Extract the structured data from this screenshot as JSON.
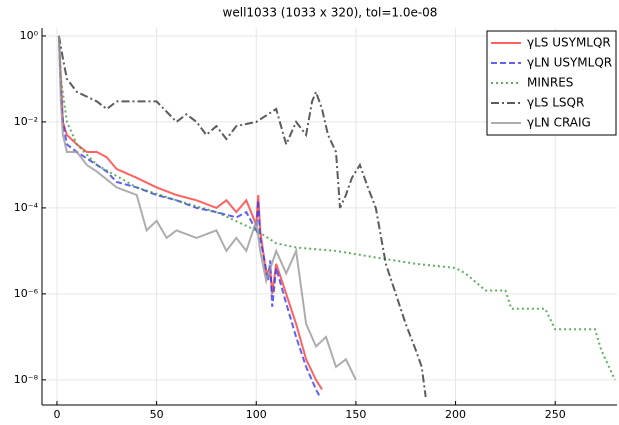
{
  "chart_data": {
    "type": "line",
    "title": "well1033 (1033 x 320), tol=1.0e-08",
    "xlim": [
      -7.5,
      281
    ],
    "xticks": [
      0,
      50,
      100,
      150,
      200,
      250
    ],
    "ylim": [
      2.6e-09,
      1.53
    ],
    "log_y": true,
    "grid": true,
    "legend": "top-right",
    "yticks": [
      {
        "value": 1,
        "label": "10⁰"
      },
      {
        "value": 0.01,
        "label": "10⁻²"
      },
      {
        "value": 0.0001,
        "label": "10⁻⁴"
      },
      {
        "value": 1e-06,
        "label": "10⁻⁶"
      },
      {
        "value": 1e-08,
        "label": "10⁻⁸"
      }
    ],
    "series": [
      {
        "name": "γLS USYMLQR",
        "color": "#ff3b3b",
        "linestyle": "solid",
        "x": [
          1,
          2,
          3,
          5,
          10,
          15,
          20,
          25,
          30,
          40,
          50,
          60,
          70,
          80,
          85,
          90,
          95,
          100,
          101,
          102,
          105,
          107,
          108,
          110,
          115,
          120,
          125,
          130,
          133
        ],
        "values": [
          1,
          0.1,
          0.01,
          0.005,
          0.003,
          0.002,
          0.002,
          0.0015,
          0.0008,
          0.0005,
          0.0003,
          0.0002,
          0.00015,
          0.0001,
          0.00015,
          8e-05,
          0.00015,
          4e-05,
          0.0002,
          3e-05,
          3e-06,
          4e-06,
          1e-06,
          5e-06,
          1e-06,
          2e-07,
          3e-08,
          1e-08,
          6e-09
        ]
      },
      {
        "name": "γLN USYMLQR",
        "color": "#3a3af0",
        "linestyle": "dash",
        "x": [
          1,
          2,
          3,
          5,
          10,
          20,
          25,
          30,
          40,
          50,
          60,
          70,
          80,
          90,
          95,
          100,
          101,
          102,
          106,
          107,
          108,
          110,
          115,
          120,
          125,
          130,
          132
        ],
        "values": [
          1,
          0.05,
          0.01,
          0.003,
          0.002,
          0.001,
          0.0007,
          0.0004,
          0.0003,
          0.0002,
          0.00015,
          0.0001,
          8e-05,
          6e-05,
          8e-05,
          3e-05,
          0.00015,
          2e-05,
          2e-06,
          6e-06,
          5e-07,
          4e-06,
          6e-07,
          1e-07,
          2e-08,
          6e-09,
          4e-09
        ]
      },
      {
        "name": "MINRES",
        "color": "#3a9a3a",
        "linestyle": "dot",
        "x": [
          1,
          2,
          5,
          10,
          20,
          40,
          60,
          80,
          100,
          110,
          120,
          140,
          160,
          180,
          200,
          205,
          215,
          225,
          228,
          245,
          250,
          270,
          273,
          280
        ],
        "values": [
          1,
          0.1,
          0.01,
          0.003,
          0.001,
          0.0003,
          0.00015,
          8e-05,
          3e-05,
          1.5e-05,
          1.2e-05,
          1e-05,
          7e-06,
          5e-06,
          4e-06,
          3e-06,
          1.2e-06,
          1.2e-06,
          4.5e-07,
          4.5e-07,
          1.5e-07,
          1.5e-07,
          5e-08,
          1e-08
        ]
      },
      {
        "name": "γLS LSQR",
        "color": "#333333",
        "linestyle": "dashdot",
        "x": [
          1,
          3,
          5,
          10,
          20,
          25,
          30,
          40,
          50,
          60,
          65,
          70,
          75,
          80,
          85,
          90,
          100,
          110,
          115,
          120,
          125,
          128,
          130,
          133,
          136,
          140,
          142,
          145,
          148,
          152,
          156,
          160,
          165,
          170,
          175,
          180,
          183,
          185
        ],
        "values": [
          1,
          0.3,
          0.1,
          0.05,
          0.03,
          0.02,
          0.03,
          0.03,
          0.03,
          0.01,
          0.015,
          0.01,
          0.005,
          0.008,
          0.004,
          0.008,
          0.01,
          0.02,
          0.003,
          0.01,
          0.005,
          0.03,
          0.05,
          0.02,
          0.005,
          0.002,
          0.0001,
          0.0002,
          0.0005,
          0.001,
          0.0003,
          0.0001,
          5e-06,
          1e-06,
          2e-07,
          5e-08,
          2e-08,
          4e-09
        ]
      },
      {
        "name": "γLN CRAIG",
        "color": "#999999",
        "linestyle": "solid",
        "x": [
          1,
          2,
          3,
          5,
          10,
          15,
          20,
          30,
          40,
          45,
          50,
          55,
          60,
          70,
          80,
          85,
          90,
          95,
          100,
          102,
          105,
          110,
          115,
          120,
          125,
          130,
          135,
          140,
          145,
          150
        ],
        "values": [
          1,
          0.03,
          0.005,
          0.002,
          0.002,
          0.001,
          0.0007,
          0.0003,
          0.0002,
          3e-05,
          5e-05,
          2e-05,
          3e-05,
          2e-05,
          3e-05,
          1e-05,
          2e-05,
          1e-05,
          5e-05,
          1e-05,
          2e-06,
          1e-05,
          3e-06,
          1e-05,
          2e-07,
          6e-08,
          1e-07,
          2e-08,
          3e-08,
          1e-08
        ]
      }
    ]
  }
}
